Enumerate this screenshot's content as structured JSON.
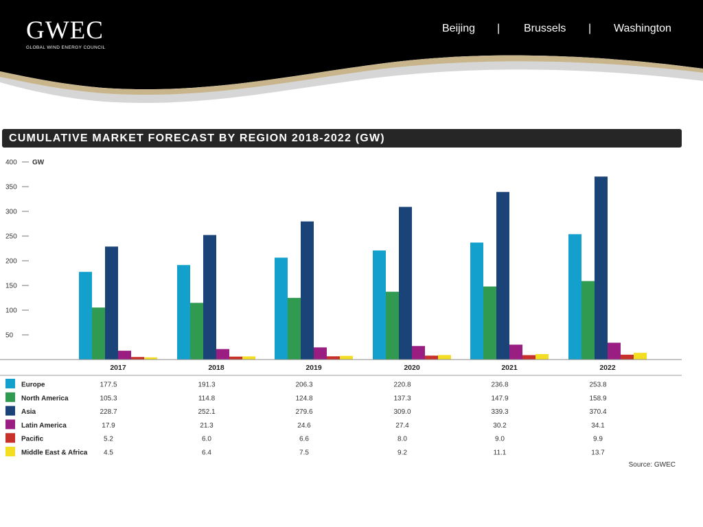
{
  "header": {
    "logo_main": "GWEC",
    "logo_sub": "GLOBAL WIND ENERGY COUNCIL",
    "nav": [
      "Beijing",
      "Brussels",
      "Washington"
    ],
    "nav_separator": "|"
  },
  "title": "CUMULATIVE MARKET FORECAST BY REGION 2018-2022 (GW)",
  "source": "Source: GWEC",
  "colors": {
    "Europe": "#13a0cc",
    "North America": "#2f9a50",
    "Asia": "#1a4478",
    "Latin America": "#9a1e82",
    "Pacific": "#c8312a",
    "Middle East & Africa": "#f3de24"
  },
  "chart_data": {
    "type": "bar",
    "categories": [
      "2017",
      "2018",
      "2019",
      "2020",
      "2021",
      "2022"
    ],
    "ylabel": "GW",
    "ylim": [
      0,
      400
    ],
    "yticks": [
      50,
      100,
      150,
      200,
      250,
      300,
      350,
      400
    ],
    "value_labels": [
      [
        "177.5",
        "191.3",
        "206.3",
        "220.8",
        "236.8",
        "253.8"
      ],
      [
        "105.3",
        "114.8",
        "124.8",
        "137.3",
        "147.9",
        "158.9"
      ],
      [
        "228.7",
        "252.1",
        "279.6",
        "309.0",
        "339.3",
        "370.4"
      ],
      [
        "17.9",
        "21.3",
        "24.6",
        "27.4",
        "30.2",
        "34.1"
      ],
      [
        "5.2",
        "6.0",
        "6.6",
        "8.0",
        "9.0",
        "9.9"
      ],
      [
        "4.5",
        "6.4",
        "7.5",
        "9.2",
        "11.1",
        "13.7"
      ]
    ],
    "series": [
      {
        "name": "Europe",
        "values": [
          177.5,
          191.3,
          206.3,
          220.8,
          236.8,
          253.8
        ]
      },
      {
        "name": "North America",
        "values": [
          105.3,
          114.8,
          124.8,
          137.3,
          147.9,
          158.9
        ]
      },
      {
        "name": "Asia",
        "values": [
          228.7,
          252.1,
          279.6,
          309.0,
          339.3,
          370.4
        ]
      },
      {
        "name": "Latin America",
        "values": [
          17.9,
          21.3,
          24.6,
          27.4,
          30.2,
          34.1
        ]
      },
      {
        "name": "Pacific",
        "values": [
          5.2,
          6.0,
          6.6,
          8.0,
          9.0,
          9.9
        ]
      },
      {
        "name": "Middle East & Africa",
        "values": [
          4.5,
          6.4,
          7.5,
          9.2,
          11.1,
          13.7
        ]
      }
    ]
  }
}
